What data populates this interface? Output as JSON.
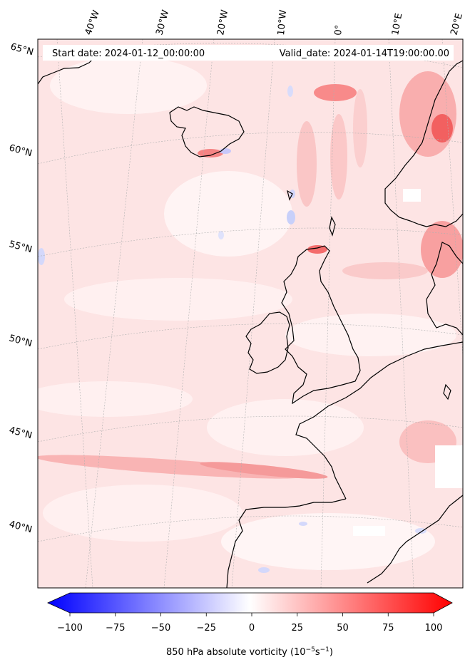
{
  "header": {
    "start_date": "Start date: 2024-01-12_00:00:00",
    "valid_date": "Valid_date: 2024-01-14T19:00:00.00"
  },
  "axes": {
    "longitude_labels": [
      "40°W",
      "30°W",
      "20°W",
      "10°W",
      "0°",
      "10°E",
      "20°E"
    ],
    "latitude_labels": [
      "65°N",
      "60°N",
      "55°N",
      "50°N",
      "45°N",
      "40°N"
    ]
  },
  "colorbar": {
    "label": "850 hPa absolute vorticity (10",
    "label_exp1": "−5",
    "label_mid": "s",
    "label_exp2": "−1",
    "label_end": ")",
    "ticks": [
      "−100",
      "−75",
      "−50",
      "−25",
      "0",
      "25",
      "50",
      "75",
      "100"
    ],
    "tick_values": [
      -100,
      -75,
      -50,
      -25,
      0,
      25,
      50,
      75,
      100
    ],
    "range": [
      -100,
      100
    ],
    "colors": {
      "negative": "#0000ff",
      "neutral": "#ffffff",
      "positive": "#ff0000"
    }
  },
  "colors": {
    "background_field": "#fde6e6",
    "coastline": "#000000",
    "gridline": "#b0b0b0"
  }
}
